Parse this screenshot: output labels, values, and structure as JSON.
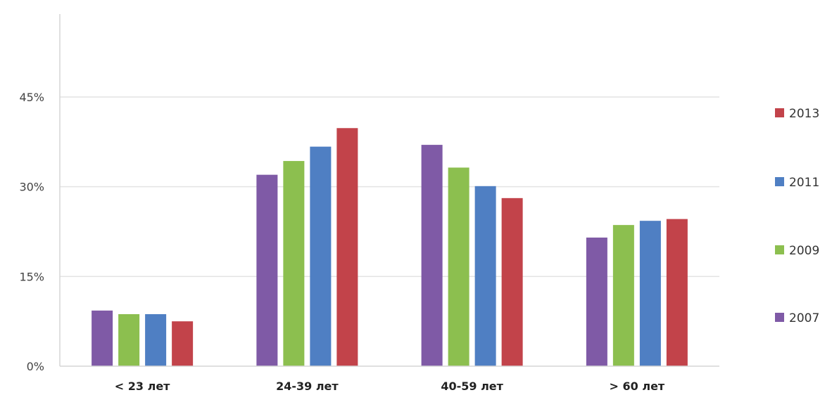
{
  "chart_data": {
    "type": "bar",
    "categories": [
      "< 23 лет",
      "24-39 лет",
      "40-59 лет",
      "> 60 лет"
    ],
    "series": [
      {
        "name": "2007",
        "color": "#7f5aa6",
        "values": [
          9.3,
          32.0,
          37.0,
          21.5
        ]
      },
      {
        "name": "2009",
        "color": "#8cbf4f",
        "values": [
          8.7,
          34.3,
          33.2,
          23.6
        ]
      },
      {
        "name": "2011",
        "color": "#4f7fc3",
        "values": [
          8.7,
          36.7,
          30.1,
          24.3
        ]
      },
      {
        "name": "2013",
        "color": "#c2434a",
        "values": [
          7.5,
          39.8,
          28.1,
          24.6
        ]
      }
    ],
    "yticks": [
      "0%",
      "15%",
      "30%",
      "45%"
    ],
    "ylim": [
      0,
      45
    ],
    "grid": true,
    "legend": "right"
  }
}
